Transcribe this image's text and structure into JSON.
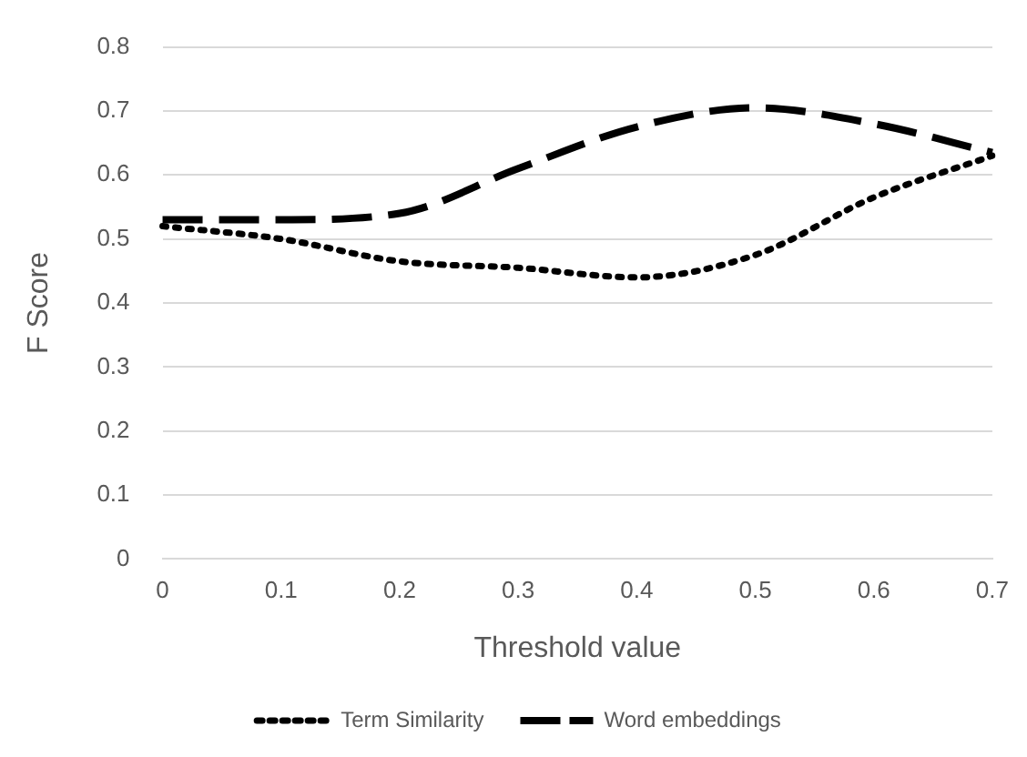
{
  "chart_data": {
    "type": "line",
    "xlabel": "Threshold value",
    "ylabel": "F Score",
    "categories": [
      "0",
      "0.1",
      "0.2",
      "0.3",
      "0.4",
      "0.5",
      "0.6",
      "0.7"
    ],
    "series": [
      {
        "name": "Term Similarity",
        "color": "#000000",
        "line_style": "dotted",
        "values": [
          0.52,
          0.5,
          0.465,
          0.455,
          0.44,
          0.475,
          0.565,
          0.63
        ]
      },
      {
        "name": "Word embeddings",
        "color": "#000000",
        "line_style": "dashed",
        "values": [
          0.53,
          0.53,
          0.54,
          0.61,
          0.675,
          0.705,
          0.68,
          0.635
        ]
      }
    ],
    "ylim": [
      0,
      0.8
    ],
    "yticks": [
      0,
      0.1,
      0.2,
      0.3,
      0.4,
      0.5,
      0.6,
      0.7,
      0.8
    ],
    "grid": "y",
    "legend": "bottom",
    "marker": "none"
  }
}
